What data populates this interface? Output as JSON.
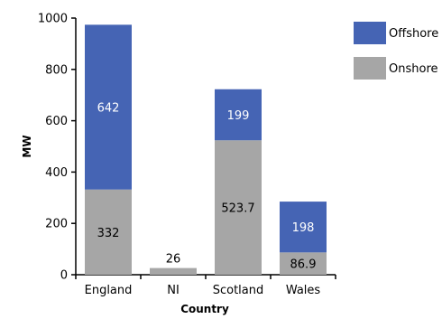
{
  "chart_data": {
    "type": "bar",
    "stacked": true,
    "categories": [
      "England",
      "NI",
      "Scotland",
      "Wales"
    ],
    "series": [
      {
        "name": "Onshore",
        "values": [
          332,
          26,
          523.7,
          86.9
        ],
        "labels": [
          "332",
          "26",
          "523.7",
          "86.9"
        ],
        "color": "#a6a6a6",
        "label_color": "#000000"
      },
      {
        "name": "Offshore",
        "values": [
          642,
          0,
          199,
          198
        ],
        "labels": [
          "642",
          "",
          "199",
          "198"
        ],
        "color": "#4564b4",
        "label_color": "#ffffff"
      }
    ],
    "title": "",
    "xlabel": "Country",
    "ylabel": "MW",
    "ylim": [
      0,
      1000
    ],
    "yticks": [
      0,
      200,
      400,
      600,
      800,
      1000
    ],
    "grid": false,
    "legend_position": "top-right",
    "legend_order": [
      "Offshore",
      "Onshore"
    ]
  }
}
